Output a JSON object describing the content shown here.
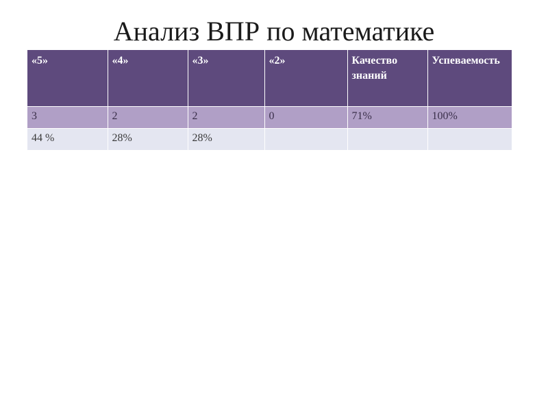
{
  "slide": {
    "title": "Анализ ВПР по математике"
  },
  "table": {
    "headers": [
      "«5»",
      "«4»",
      "«3»",
      "«2»",
      "Качество знаний",
      "Успеваемость"
    ],
    "rows": [
      [
        "3",
        "2",
        "2",
        "0",
        "71%",
        "100%"
      ],
      [
        "44 %",
        "28%",
        "28%",
        "",
        "",
        ""
      ]
    ]
  },
  "colors": {
    "header_bg": "#5e4a7d",
    "row1_bg": "#b09fc6",
    "row2_bg": "#e4e6f1"
  }
}
